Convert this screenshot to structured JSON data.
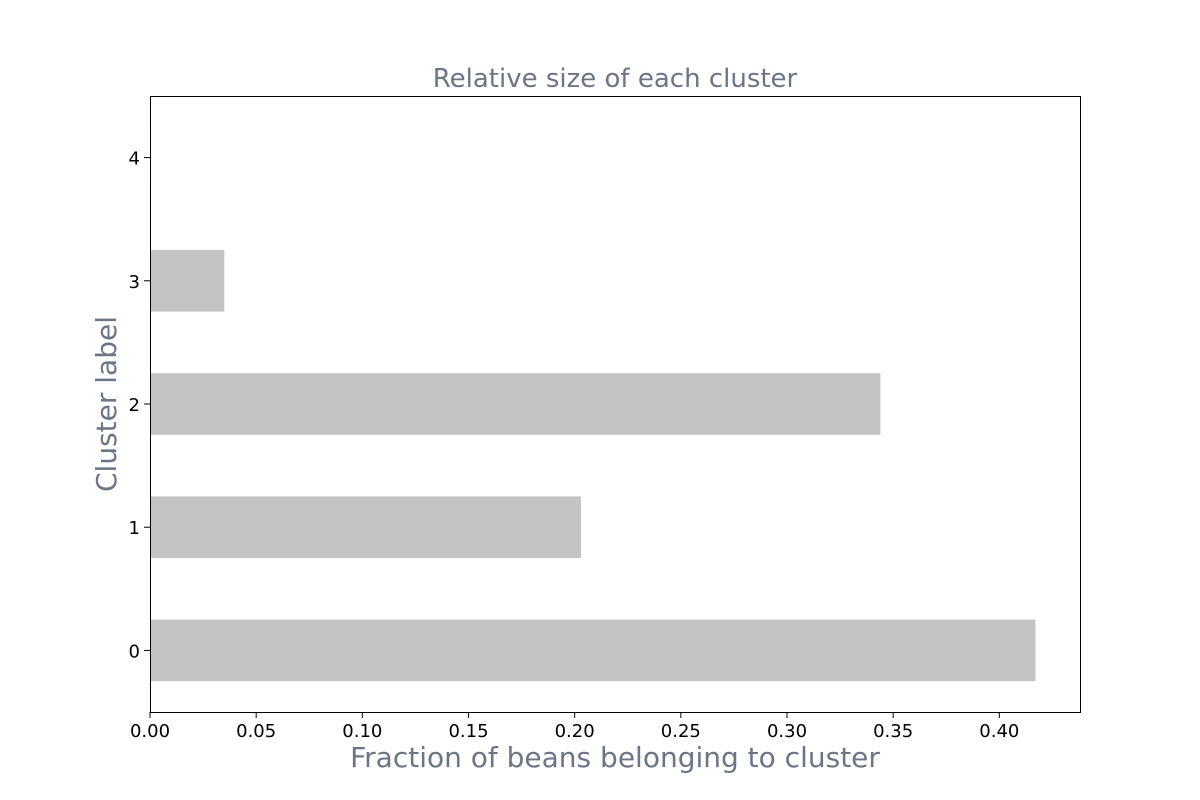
{
  "chart_data": {
    "type": "bar",
    "orientation": "horizontal",
    "title": "Relative size of each cluster",
    "xlabel": "Fraction of beans belonging to cluster",
    "ylabel": "Cluster label",
    "categories": [
      "0",
      "1",
      "2",
      "3",
      "4"
    ],
    "values": [
      0.417,
      0.203,
      0.344,
      0.035,
      0.0005
    ],
    "xlim": [
      0,
      0.438
    ],
    "xticks": [
      "0.00",
      "0.05",
      "0.10",
      "0.15",
      "0.20",
      "0.25",
      "0.30",
      "0.35",
      "0.40"
    ],
    "grid": false,
    "bar_color": "#c3c4c6",
    "label_color": "#6b7585"
  }
}
